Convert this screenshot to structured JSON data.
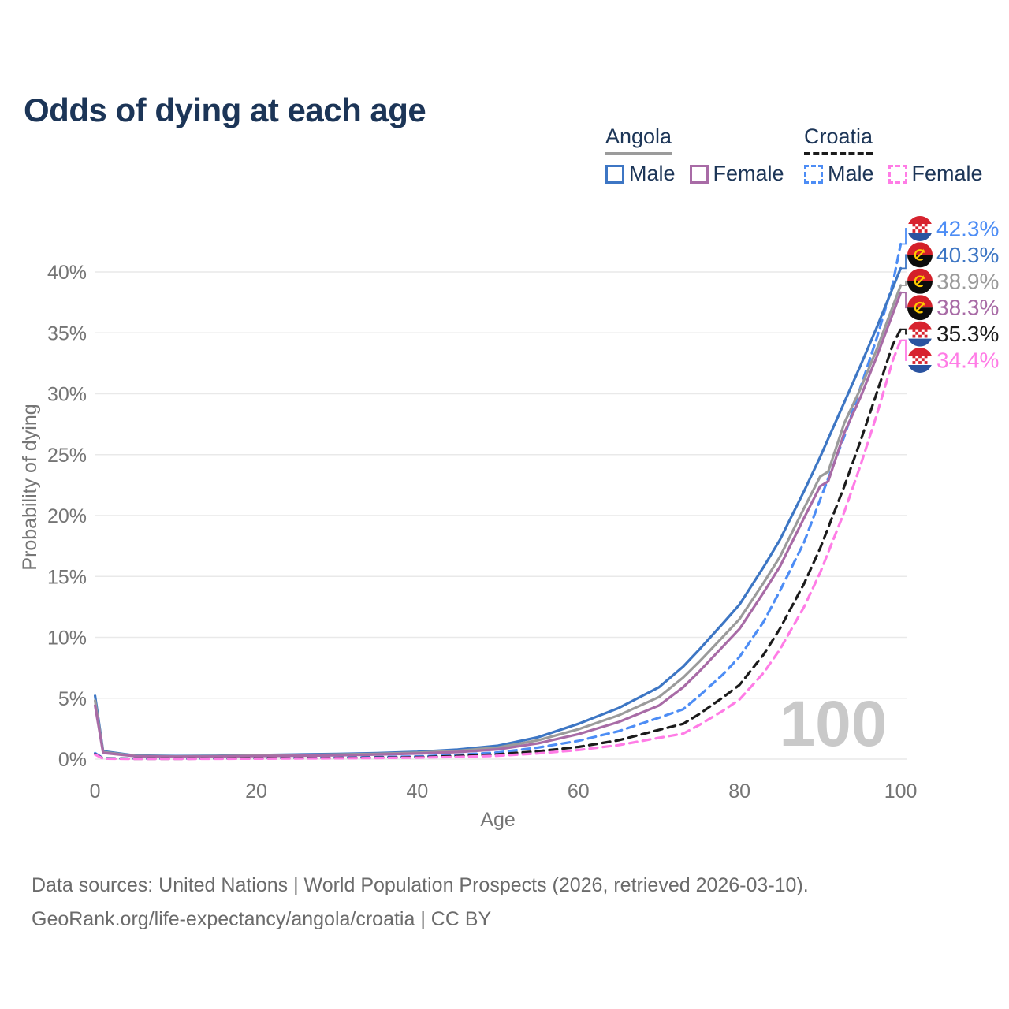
{
  "title": "Odds of dying at each age",
  "legend": {
    "groups": [
      {
        "name": "Angola",
        "dashed": false,
        "underline_color": "#9b9b9b",
        "items": [
          {
            "label": "Male",
            "color": "#3d76c4"
          },
          {
            "label": "Female",
            "color": "#a86ba6"
          }
        ]
      },
      {
        "name": "Croatia",
        "dashed": true,
        "underline_color": "#1b1b1b",
        "items": [
          {
            "label": "Male",
            "color": "#4d8df5"
          },
          {
            "label": "Female",
            "color": "#ff7ce6"
          }
        ]
      }
    ]
  },
  "chart_data": {
    "type": "line",
    "title": "Odds of dying at each age",
    "xlabel": "Age",
    "ylabel": "Probability of dying",
    "xlim": [
      0,
      100
    ],
    "ylim": [
      0,
      44
    ],
    "xticks": [
      0,
      20,
      40,
      60,
      80,
      100
    ],
    "yticks": [
      0,
      5,
      10,
      15,
      20,
      25,
      30,
      35,
      40
    ],
    "ytick_suffix": "%",
    "grid": true,
    "legend_position": "top-right",
    "watermark": "100",
    "series": [
      {
        "name": "Croatia Male",
        "country": "croatia",
        "sex": "male",
        "style": "dashed",
        "color": "#4d8df5",
        "end_label": "42.3%",
        "points": [
          [
            0,
            0.5
          ],
          [
            1,
            0.07
          ],
          [
            5,
            0.04
          ],
          [
            10,
            0.04
          ],
          [
            15,
            0.06
          ],
          [
            20,
            0.09
          ],
          [
            25,
            0.11
          ],
          [
            30,
            0.13
          ],
          [
            35,
            0.17
          ],
          [
            40,
            0.22
          ],
          [
            45,
            0.35
          ],
          [
            50,
            0.55
          ],
          [
            55,
            0.95
          ],
          [
            60,
            1.5
          ],
          [
            65,
            2.3
          ],
          [
            70,
            3.4
          ],
          [
            73,
            4.1
          ],
          [
            75,
            5.2
          ],
          [
            78,
            7.0
          ],
          [
            80,
            8.4
          ],
          [
            83,
            11.3
          ],
          [
            85,
            13.8
          ],
          [
            88,
            17.8
          ],
          [
            90,
            21.3
          ],
          [
            93,
            26.5
          ],
          [
            95,
            30.5
          ],
          [
            97,
            34.5
          ],
          [
            99,
            39.0
          ],
          [
            100,
            42.3
          ]
        ]
      },
      {
        "name": "Angola Male",
        "country": "angola",
        "sex": "male",
        "style": "solid",
        "color": "#3d76c4",
        "end_label": "40.3%",
        "points": [
          [
            0,
            5.2
          ],
          [
            1,
            0.65
          ],
          [
            5,
            0.3
          ],
          [
            10,
            0.25
          ],
          [
            15,
            0.28
          ],
          [
            20,
            0.33
          ],
          [
            25,
            0.38
          ],
          [
            30,
            0.43
          ],
          [
            35,
            0.5
          ],
          [
            40,
            0.6
          ],
          [
            45,
            0.78
          ],
          [
            50,
            1.1
          ],
          [
            55,
            1.8
          ],
          [
            60,
            2.9
          ],
          [
            65,
            4.2
          ],
          [
            70,
            5.9
          ],
          [
            73,
            7.6
          ],
          [
            75,
            9.0
          ],
          [
            78,
            11.2
          ],
          [
            80,
            12.7
          ],
          [
            83,
            15.8
          ],
          [
            85,
            18.0
          ],
          [
            88,
            22.0
          ],
          [
            90,
            24.8
          ],
          [
            93,
            29.3
          ],
          [
            95,
            32.3
          ],
          [
            97,
            35.4
          ],
          [
            100,
            40.3
          ]
        ]
      },
      {
        "name": "Angola Both sexes",
        "country": "angola",
        "sex": "both",
        "style": "solid",
        "color": "#9b9b9b",
        "end_label": "38.9%",
        "points": [
          [
            0,
            4.8
          ],
          [
            1,
            0.58
          ],
          [
            5,
            0.27
          ],
          [
            10,
            0.22
          ],
          [
            15,
            0.25
          ],
          [
            20,
            0.29
          ],
          [
            25,
            0.33
          ],
          [
            30,
            0.38
          ],
          [
            35,
            0.44
          ],
          [
            40,
            0.53
          ],
          [
            45,
            0.68
          ],
          [
            50,
            0.95
          ],
          [
            55,
            1.55
          ],
          [
            60,
            2.45
          ],
          [
            65,
            3.6
          ],
          [
            70,
            5.1
          ],
          [
            73,
            6.7
          ],
          [
            75,
            8.0
          ],
          [
            78,
            10.1
          ],
          [
            80,
            11.5
          ],
          [
            83,
            14.5
          ],
          [
            85,
            16.6
          ],
          [
            88,
            20.6
          ],
          [
            90,
            23.2
          ],
          [
            91,
            23.6
          ],
          [
            93,
            27.6
          ],
          [
            95,
            30.4
          ],
          [
            97,
            33.6
          ],
          [
            100,
            38.9
          ]
        ]
      },
      {
        "name": "Angola Female",
        "country": "angola",
        "sex": "female",
        "style": "solid",
        "color": "#a86ba6",
        "end_label": "38.3%",
        "points": [
          [
            0,
            4.4
          ],
          [
            1,
            0.52
          ],
          [
            5,
            0.24
          ],
          [
            10,
            0.2
          ],
          [
            15,
            0.22
          ],
          [
            20,
            0.25
          ],
          [
            25,
            0.28
          ],
          [
            30,
            0.32
          ],
          [
            35,
            0.38
          ],
          [
            40,
            0.46
          ],
          [
            45,
            0.58
          ],
          [
            50,
            0.8
          ],
          [
            55,
            1.3
          ],
          [
            60,
            2.05
          ],
          [
            65,
            3.05
          ],
          [
            70,
            4.4
          ],
          [
            73,
            5.9
          ],
          [
            75,
            7.2
          ],
          [
            78,
            9.3
          ],
          [
            80,
            10.7
          ],
          [
            83,
            13.7
          ],
          [
            85,
            15.8
          ],
          [
            88,
            19.8
          ],
          [
            90,
            22.4
          ],
          [
            91,
            22.8
          ],
          [
            93,
            26.8
          ],
          [
            95,
            29.7
          ],
          [
            97,
            33.0
          ],
          [
            100,
            38.3
          ]
        ]
      },
      {
        "name": "Croatia Both sexes",
        "country": "croatia",
        "sex": "both",
        "style": "dashed",
        "color": "#1b1b1b",
        "end_label": "35.3%",
        "points": [
          [
            0,
            0.42
          ],
          [
            1,
            0.05
          ],
          [
            5,
            0.03
          ],
          [
            10,
            0.03
          ],
          [
            15,
            0.04
          ],
          [
            20,
            0.06
          ],
          [
            25,
            0.08
          ],
          [
            30,
            0.09
          ],
          [
            35,
            0.12
          ],
          [
            40,
            0.16
          ],
          [
            45,
            0.25
          ],
          [
            50,
            0.4
          ],
          [
            55,
            0.65
          ],
          [
            60,
            1.0
          ],
          [
            65,
            1.55
          ],
          [
            70,
            2.4
          ],
          [
            73,
            2.9
          ],
          [
            75,
            3.7
          ],
          [
            78,
            5.1
          ],
          [
            80,
            6.1
          ],
          [
            83,
            8.6
          ],
          [
            85,
            10.7
          ],
          [
            88,
            14.4
          ],
          [
            90,
            17.3
          ],
          [
            93,
            22.4
          ],
          [
            95,
            26.1
          ],
          [
            97,
            30.0
          ],
          [
            99,
            34.0
          ],
          [
            100,
            35.3
          ]
        ]
      },
      {
        "name": "Croatia Female",
        "country": "croatia",
        "sex": "female",
        "style": "dashed",
        "color": "#ff7ce6",
        "end_label": "34.4%",
        "points": [
          [
            0,
            0.38
          ],
          [
            1,
            0.04
          ],
          [
            5,
            0.02
          ],
          [
            10,
            0.02
          ],
          [
            15,
            0.03
          ],
          [
            20,
            0.04
          ],
          [
            25,
            0.06
          ],
          [
            30,
            0.07
          ],
          [
            35,
            0.09
          ],
          [
            40,
            0.12
          ],
          [
            45,
            0.18
          ],
          [
            50,
            0.28
          ],
          [
            55,
            0.47
          ],
          [
            60,
            0.75
          ],
          [
            65,
            1.15
          ],
          [
            70,
            1.75
          ],
          [
            73,
            2.1
          ],
          [
            75,
            2.8
          ],
          [
            78,
            4.0
          ],
          [
            80,
            4.9
          ],
          [
            83,
            7.1
          ],
          [
            85,
            9.0
          ],
          [
            88,
            12.5
          ],
          [
            90,
            15.3
          ],
          [
            93,
            20.3
          ],
          [
            95,
            24.1
          ],
          [
            97,
            28.2
          ],
          [
            99,
            32.7
          ],
          [
            100,
            34.4
          ]
        ]
      }
    ]
  },
  "footer": {
    "line1": "Data sources: United Nations | World Population Prospects (2026, retrieved 2026-03-10).",
    "line2": "GeoRank.org/life-expectancy/angola/croatia | CC BY"
  }
}
